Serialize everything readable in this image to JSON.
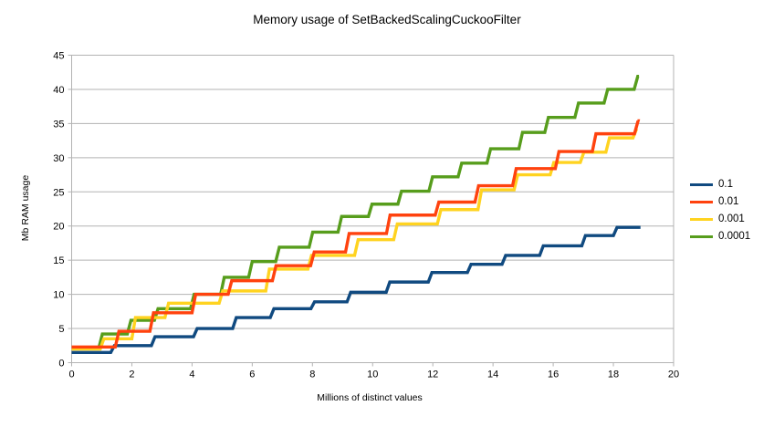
{
  "colors": {
    "background": "#ffffff",
    "gridline": "#b3b3b3",
    "text": "#000000"
  },
  "chart_data": {
    "type": "line",
    "line_style": "step",
    "title": "Memory usage of SetBackedScalingCuckooFilter",
    "xlabel": "Millions of distinct values",
    "ylabel": "Mb RAM usage",
    "xlim": [
      0,
      20
    ],
    "ylim": [
      0,
      45
    ],
    "x_ticks": [
      0,
      2,
      4,
      6,
      8,
      10,
      12,
      14,
      16,
      18,
      20
    ],
    "y_ticks": [
      0,
      5,
      10,
      15,
      20,
      25,
      30,
      35,
      40,
      45
    ],
    "grid": "horizontal",
    "legend_position": "right",
    "segment_format": "[x_from_millions, x_to_millions, mb_ram_usage]",
    "series": [
      {
        "name": "0.1",
        "color": "#104A80",
        "segments": [
          [
            0,
            1.3,
            1.5
          ],
          [
            1.3,
            2.65,
            2.5
          ],
          [
            2.65,
            4.05,
            3.8
          ],
          [
            4.05,
            5.35,
            5.0
          ],
          [
            5.35,
            6.6,
            6.6
          ],
          [
            6.6,
            7.95,
            7.9
          ],
          [
            7.95,
            9.15,
            8.9
          ],
          [
            9.15,
            10.45,
            10.3
          ],
          [
            10.45,
            11.85,
            11.8
          ],
          [
            11.85,
            13.15,
            13.2
          ],
          [
            13.15,
            14.3,
            14.4
          ],
          [
            14.3,
            15.55,
            15.7
          ],
          [
            15.55,
            16.95,
            17.1
          ],
          [
            16.95,
            18.0,
            18.6
          ],
          [
            18.0,
            18.9,
            19.8
          ]
        ]
      },
      {
        "name": "0.01",
        "color": "#FF420E",
        "segments": [
          [
            0,
            1.45,
            2.3
          ],
          [
            1.45,
            2.6,
            4.6
          ],
          [
            2.6,
            4.0,
            7.3
          ],
          [
            4.0,
            5.2,
            10.0
          ],
          [
            5.2,
            6.67,
            12.0
          ],
          [
            6.67,
            7.94,
            14.2
          ],
          [
            7.94,
            9.1,
            16.2
          ],
          [
            9.1,
            10.46,
            18.9
          ],
          [
            10.46,
            12.08,
            21.6
          ],
          [
            12.08,
            13.4,
            23.5
          ],
          [
            13.4,
            14.65,
            25.9
          ],
          [
            14.65,
            16.07,
            28.4
          ],
          [
            16.07,
            17.3,
            30.9
          ],
          [
            17.3,
            18.7,
            33.5
          ],
          [
            18.7,
            18.8,
            35.4
          ]
        ]
      },
      {
        "name": "0.001",
        "color": "#FFD320",
        "segments": [
          [
            0,
            0.95,
            2.0
          ],
          [
            0.95,
            2.0,
            3.5
          ],
          [
            2.0,
            3.1,
            6.6
          ],
          [
            3.1,
            4.9,
            8.7
          ],
          [
            4.9,
            6.45,
            10.5
          ],
          [
            6.45,
            7.85,
            13.7
          ],
          [
            7.85,
            9.4,
            15.7
          ],
          [
            9.4,
            10.7,
            18.0
          ],
          [
            10.7,
            12.15,
            20.3
          ],
          [
            12.15,
            13.5,
            22.4
          ],
          [
            13.5,
            14.7,
            25.3
          ],
          [
            14.7,
            15.9,
            27.5
          ],
          [
            15.9,
            16.9,
            29.3
          ],
          [
            16.9,
            17.75,
            30.8
          ],
          [
            17.75,
            18.65,
            32.9
          ],
          [
            18.65,
            18.8,
            34.2
          ]
        ]
      },
      {
        "name": "0.0001",
        "color": "#579D1C",
        "segments": [
          [
            0,
            0.9,
            2.1
          ],
          [
            0.9,
            1.85,
            4.2
          ],
          [
            1.85,
            2.75,
            6.2
          ],
          [
            2.75,
            3.95,
            7.9
          ],
          [
            3.95,
            4.95,
            10.0
          ],
          [
            4.95,
            5.88,
            12.5
          ],
          [
            5.88,
            6.78,
            14.8
          ],
          [
            6.78,
            7.89,
            16.9
          ],
          [
            7.89,
            8.85,
            19.1
          ],
          [
            8.85,
            9.86,
            21.4
          ],
          [
            9.86,
            10.84,
            23.2
          ],
          [
            10.84,
            11.87,
            25.1
          ],
          [
            11.87,
            12.84,
            27.2
          ],
          [
            12.84,
            13.8,
            29.2
          ],
          [
            13.8,
            14.86,
            31.3
          ],
          [
            14.86,
            15.72,
            33.7
          ],
          [
            15.72,
            16.72,
            35.9
          ],
          [
            16.72,
            17.69,
            38.0
          ],
          [
            17.69,
            18.69,
            40.0
          ],
          [
            18.69,
            18.85,
            41.9
          ]
        ]
      }
    ]
  }
}
